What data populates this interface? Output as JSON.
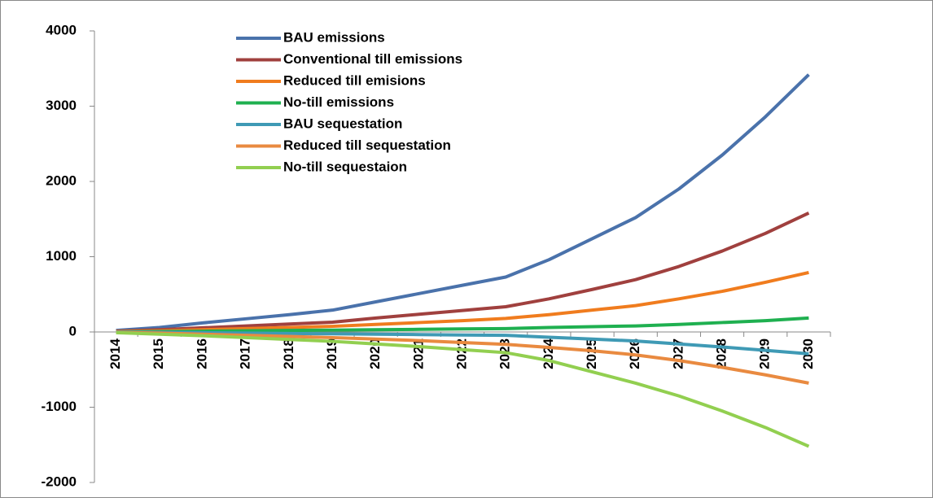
{
  "chart_data": {
    "type": "line",
    "categories": [
      "2014",
      "2015",
      "2016",
      "2017",
      "2018",
      "2019",
      "2020",
      "2021",
      "2022",
      "2023",
      "2024",
      "2025",
      "2026",
      "2027",
      "2028",
      "2029",
      "2030"
    ],
    "series": [
      {
        "name": "BAU emissions",
        "color": "#4a72ab",
        "values": [
          20,
          60,
          120,
          175,
          230,
          290,
          400,
          510,
          620,
          730,
          960,
          1240,
          1520,
          1900,
          2350,
          2860,
          3420
        ]
      },
      {
        "name": "Conventional till emissions",
        "color": "#a0403e",
        "values": [
          10,
          30,
          55,
          80,
          105,
          130,
          185,
          235,
          285,
          335,
          440,
          565,
          695,
          870,
          1075,
          1310,
          1580
        ]
      },
      {
        "name": "Reduced till emisions",
        "color": "#f07c1e",
        "values": [
          5,
          15,
          30,
          45,
          60,
          75,
          100,
          125,
          150,
          180,
          230,
          290,
          350,
          440,
          540,
          660,
          790
        ]
      },
      {
        "name": "No-till emissions",
        "color": "#1fb050",
        "values": [
          0,
          5,
          10,
          15,
          20,
          25,
          30,
          35,
          40,
          45,
          60,
          70,
          80,
          100,
          125,
          150,
          185
        ]
      },
      {
        "name": "BAU sequestation",
        "color": "#3f9ab5",
        "values": [
          0,
          -5,
          -10,
          -15,
          -20,
          -25,
          -30,
          -35,
          -40,
          -45,
          -70,
          -95,
          -120,
          -160,
          -200,
          -245,
          -290
        ]
      },
      {
        "name": "Reduced till sequestation",
        "color": "#e98a40",
        "values": [
          -5,
          -15,
          -30,
          -45,
          -60,
          -75,
          -95,
          -115,
          -140,
          -165,
          -205,
          -250,
          -305,
          -380,
          -470,
          -570,
          -680
        ]
      },
      {
        "name": "No-till sequestaion",
        "color": "#92cf50",
        "values": [
          -10,
          -30,
          -50,
          -75,
          -100,
          -125,
          -160,
          -195,
          -235,
          -275,
          -380,
          -530,
          -680,
          -850,
          -1050,
          -1270,
          -1520
        ]
      }
    ],
    "ylim": [
      -2000,
      4000
    ],
    "yticks": [
      -2000,
      -1000,
      0,
      1000,
      2000,
      3000,
      4000
    ],
    "grid": false,
    "legend": "top-left"
  }
}
